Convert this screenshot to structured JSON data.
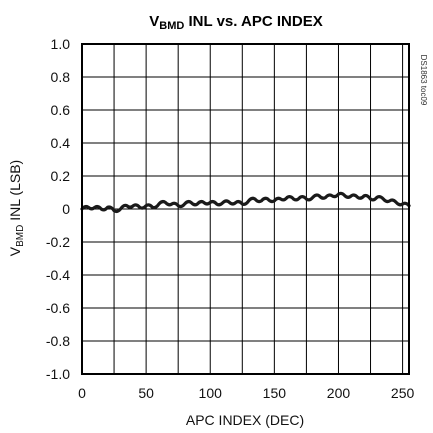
{
  "chart_data": {
    "type": "line",
    "title": {
      "main": "V",
      "sub": "BMD",
      "rest": " INL vs. APC INDEX"
    },
    "xlabel": "APC INDEX (DEC)",
    "ylabel": {
      "main": "V",
      "sub": "BMD",
      "rest": " INL (LSB)"
    },
    "side_note": "DS1863 toc09",
    "xlim": [
      0,
      255
    ],
    "ylim": [
      -1.0,
      1.0
    ],
    "x_ticks": [
      0,
      50,
      100,
      150,
      200,
      250
    ],
    "x_tick_labels": [
      "0",
      "50",
      "100",
      "150",
      "200",
      "250"
    ],
    "y_ticks": [
      1.0,
      0.8,
      0.6,
      0.4,
      0.2,
      0,
      -0.2,
      -0.4,
      -0.6,
      -0.8,
      -1.0
    ],
    "y_tick_labels": [
      "1.0",
      "0.8",
      "0.6",
      "0.4",
      "0.2",
      "0",
      "-0.2",
      "-0.4",
      "-0.6",
      "-0.8",
      "-1.0"
    ],
    "x_vertical_gridlines": [
      0,
      25,
      50,
      75,
      100,
      125,
      150,
      175,
      200,
      225,
      250
    ],
    "grid": true,
    "series": [
      {
        "color": "#1a1a1a",
        "x": [
          0,
          5,
          10,
          15,
          20,
          25,
          30,
          35,
          40,
          45,
          50,
          55,
          60,
          65,
          70,
          75,
          80,
          85,
          90,
          95,
          100,
          105,
          110,
          115,
          120,
          125,
          130,
          135,
          140,
          145,
          150,
          155,
          160,
          165,
          170,
          175,
          180,
          185,
          190,
          195,
          200,
          205,
          210,
          215,
          220,
          225,
          230,
          235,
          240,
          245,
          250,
          255
        ],
        "y": [
          0.0,
          0.01,
          0.01,
          0.0,
          0.01,
          -0.01,
          0.0,
          0.02,
          0.02,
          0.01,
          0.02,
          0.01,
          0.03,
          0.04,
          0.03,
          0.02,
          0.03,
          0.04,
          0.03,
          0.04,
          0.04,
          0.03,
          0.04,
          0.04,
          0.04,
          0.03,
          0.05,
          0.06,
          0.05,
          0.06,
          0.05,
          0.06,
          0.07,
          0.06,
          0.07,
          0.06,
          0.07,
          0.08,
          0.07,
          0.08,
          0.09,
          0.08,
          0.08,
          0.07,
          0.08,
          0.06,
          0.07,
          0.06,
          0.05,
          0.04,
          0.03,
          0.02
        ]
      }
    ]
  }
}
